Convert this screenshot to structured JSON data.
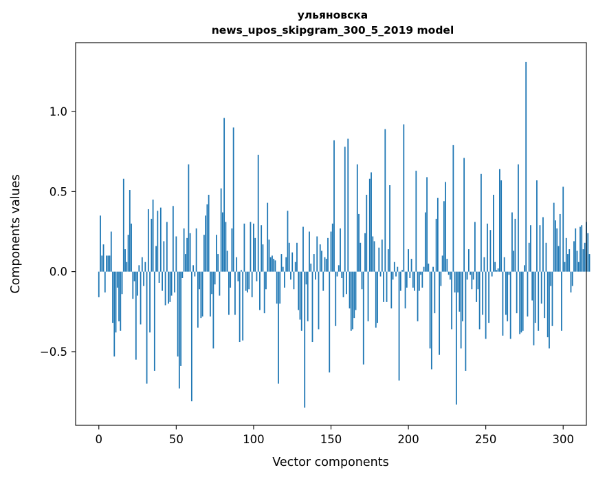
{
  "chart_data": {
    "type": "bar",
    "title": "ульяновска\nnews_upos_skipgram_300_5_2019 model",
    "xlabel": "Vector components",
    "ylabel": "Components values",
    "xlim": [
      -15,
      315
    ],
    "ylim": [
      -0.96,
      1.43
    ],
    "xticks": [
      0,
      50,
      100,
      150,
      200,
      250,
      300
    ],
    "yticks": [
      -0.5,
      0.0,
      0.5,
      1.0
    ],
    "ytick_labels": [
      "−0.5",
      "0.0",
      "0.5",
      "1.0"
    ],
    "grid": false,
    "legend": "none",
    "bar_color": "#1f77b4",
    "values": [
      -0.16,
      0.35,
      0.1,
      0.17,
      -0.13,
      0.1,
      0.1,
      0.1,
      0.25,
      -0.32,
      -0.53,
      -0.38,
      -0.1,
      -0.31,
      -0.37,
      -0.14,
      0.58,
      0.14,
      0.06,
      0.23,
      0.51,
      0.3,
      -0.17,
      -0.06,
      -0.55,
      -0.15,
      0.04,
      -0.33,
      0.09,
      -0.09,
      0.06,
      -0.7,
      0.39,
      -0.38,
      0.33,
      0.45,
      -0.62,
      0.16,
      0.38,
      -0.07,
      0.4,
      -0.12,
      0.19,
      -0.21,
      0.31,
      -0.2,
      -0.19,
      -0.15,
      0.41,
      -0.13,
      0.22,
      -0.53,
      -0.73,
      -0.59,
      -0.04,
      0.27,
      0.11,
      0.21,
      0.67,
      0.24,
      -0.81,
      0.04,
      -0.03,
      0.27,
      -0.35,
      -0.11,
      -0.29,
      -0.28,
      0.23,
      0.35,
      0.42,
      0.48,
      -0.28,
      -0.14,
      -0.48,
      -0.08,
      0.23,
      0.11,
      -0.15,
      0.52,
      0.37,
      0.96,
      0.31,
      0.13,
      -0.27,
      -0.1,
      0.27,
      0.9,
      -0.27,
      0.09,
      -0.06,
      -0.44,
      0.01,
      -0.43,
      0.3,
      -0.12,
      -0.13,
      -0.11,
      0.31,
      -0.16,
      0.3,
      0.21,
      -0.06,
      0.73,
      -0.24,
      0.29,
      0.17,
      -0.26,
      -0.11,
      0.43,
      0.2,
      0.09,
      0.1,
      0.08,
      0.07,
      -0.2,
      -0.7,
      -0.2,
      0.11,
      0.03,
      -0.1,
      0.09,
      0.38,
      0.18,
      -0.05,
      0.12,
      -0.11,
      0.06,
      0.18,
      -0.24,
      -0.3,
      -0.37,
      0.28,
      -0.85,
      -0.08,
      -0.31,
      0.25,
      0.05,
      -0.44,
      0.11,
      -0.05,
      0.22,
      -0.36,
      0.17,
      0.13,
      -0.12,
      0.09,
      0.08,
      0.21,
      -0.63,
      0.25,
      0.3,
      0.82,
      -0.34,
      -0.03,
      0.04,
      0.27,
      -0.04,
      -0.16,
      0.78,
      -0.14,
      0.83,
      -0.23,
      -0.37,
      -0.36,
      -0.29,
      -0.24,
      0.67,
      0.36,
      0.18,
      -0.11,
      -0.58,
      0.24,
      0.48,
      -0.31,
      0.58,
      0.62,
      0.22,
      0.19,
      -0.35,
      -0.32,
      0.15,
      -0.03,
      0.2,
      -0.19,
      0.89,
      -0.19,
      0.14,
      0.54,
      -0.23,
      -0.05,
      0.06,
      -0.03,
      0.03,
      -0.68,
      -0.12,
      0.01,
      0.92,
      -0.23,
      -0.1,
      0.14,
      -0.04,
      0.08,
      -0.1,
      -0.12,
      0.63,
      -0.31,
      -0.12,
      -0.02,
      -0.1,
      0.03,
      0.37,
      0.59,
      0.05,
      -0.48,
      -0.61,
      0.03,
      -0.26,
      0.33,
      0.46,
      -0.52,
      -0.09,
      0.1,
      0.44,
      0.56,
      0.08,
      -0.02,
      -0.05,
      -0.36,
      0.79,
      -0.13,
      -0.83,
      -0.13,
      -0.25,
      -0.48,
      -0.31,
      0.71,
      -0.62,
      -0.05,
      0.14,
      -0.02,
      -0.11,
      -0.05,
      0.31,
      -0.19,
      -0.11,
      -0.36,
      0.61,
      -0.27,
      0.09,
      -0.42,
      0.3,
      -0.32,
      0.26,
      -0.03,
      0.48,
      0.06,
      0.01,
      0.02,
      0.64,
      0.57,
      -0.4,
      0.09,
      -0.27,
      -0.31,
      -0.02,
      -0.42,
      0.37,
      0.13,
      0.33,
      -0.26,
      0.67,
      -0.39,
      -0.38,
      -0.37,
      0.04,
      1.31,
      -0.28,
      0.18,
      0.29,
      -0.18,
      -0.46,
      -0.32,
      0.57,
      -0.37,
      0.29,
      -0.2,
      0.34,
      -0.29,
      0.18,
      -0.41,
      -0.48,
      -0.09,
      -0.34,
      0.43,
      0.32,
      0.27,
      0.16,
      0.36,
      -0.37,
      0.53,
      0.06,
      0.21,
      0.11,
      0.14,
      -0.13,
      -0.09,
      0.19,
      0.27,
      0.13,
      0.06,
      0.28,
      0.29,
      0.14,
      0.18,
      0.31,
      0.24,
      0.11
    ]
  }
}
